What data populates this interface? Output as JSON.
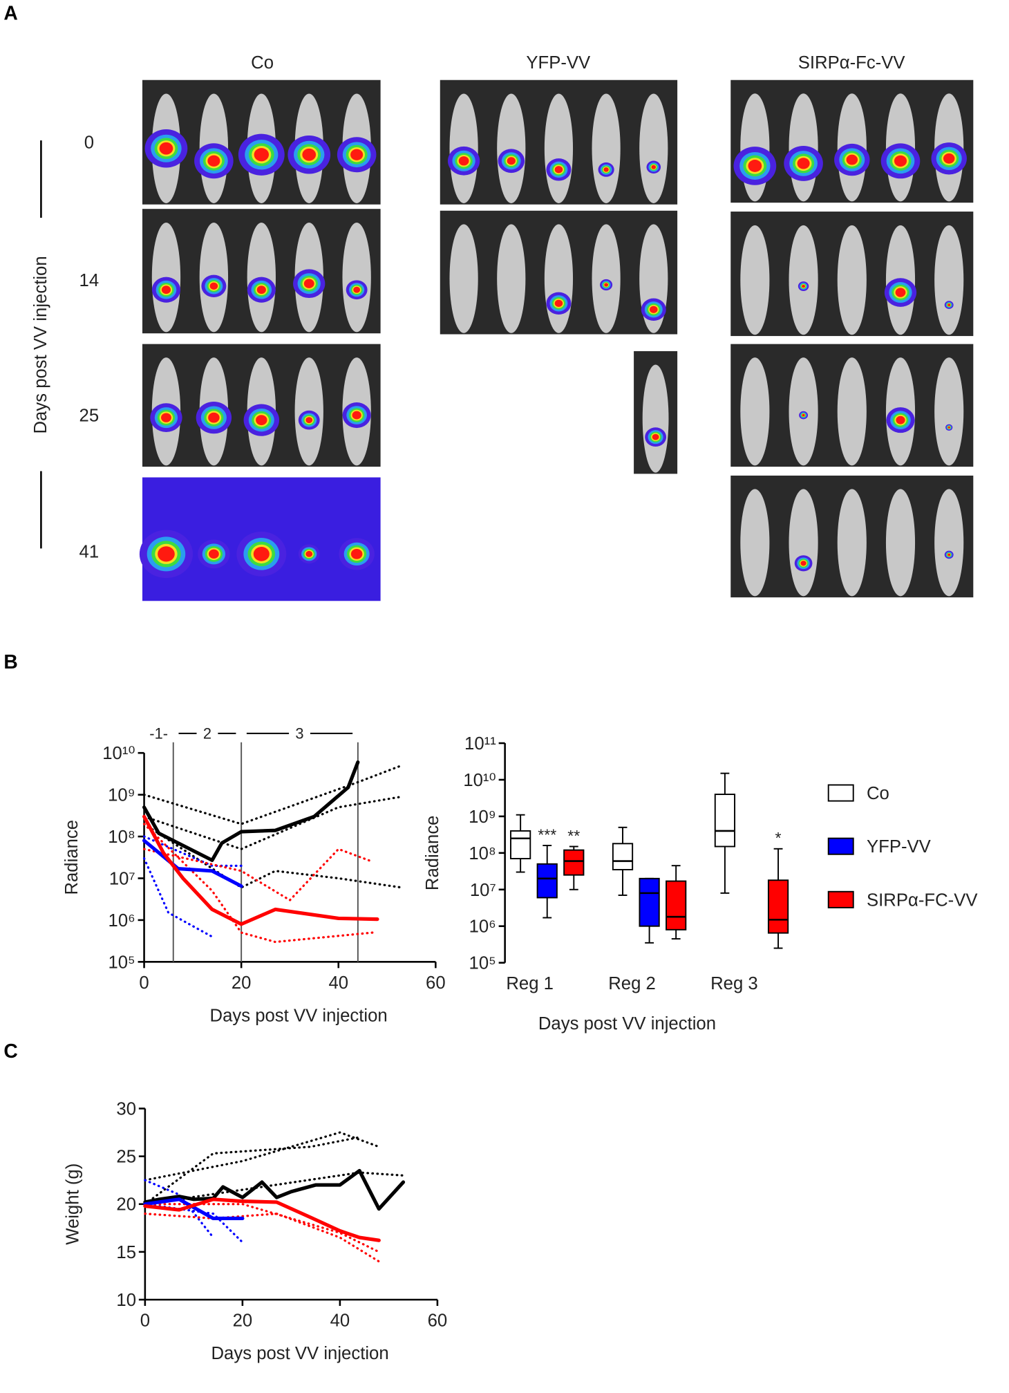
{
  "panel_a": {
    "label": "A",
    "columns": [
      "Co",
      "YFP-VV",
      "SIRPα-Fc-VV"
    ],
    "days": [
      "0",
      "14",
      "25",
      "41"
    ],
    "y_label": "Days post VV injection"
  },
  "panel_b_label": "B",
  "panel_c_label": "C",
  "chart_data": [
    {
      "type": "line",
      "y_label": "Radiance",
      "x_label": "Days post VV injection",
      "log_y": true,
      "xlim": [
        0,
        60
      ],
      "xticks": [
        0,
        20,
        40,
        60
      ],
      "ylim": [
        100000,
        10000000000
      ],
      "yticks": [
        {
          "value": 100000,
          "label": "10⁵"
        },
        {
          "value": 1000000,
          "label": "10⁶"
        },
        {
          "value": 10000000,
          "label": "10⁷"
        },
        {
          "value": 100000000,
          "label": "10⁸"
        },
        {
          "value": 1000000000,
          "label": "10⁹"
        },
        {
          "value": 10000000000,
          "label": "10¹⁰"
        }
      ],
      "vlines": [
        6,
        20,
        44
      ],
      "regions": [
        {
          "label": "-1-",
          "from": 0,
          "to": 6
        },
        {
          "label": "2",
          "from": 6,
          "to": 20
        },
        {
          "label": "3",
          "from": 20,
          "to": 44
        }
      ],
      "series": [
        {
          "color": "#000000",
          "style": "dotted",
          "x": [
            0,
            20,
            44,
            53
          ],
          "values": [
            1000000000,
            200000000,
            2000000000,
            5000000000
          ]
        },
        {
          "color": "#000000",
          "style": "dotted",
          "x": [
            0,
            20,
            40,
            53
          ],
          "values": [
            300000000,
            50000000,
            500000000,
            900000000
          ]
        },
        {
          "color": "#000000",
          "style": "dotted",
          "x": [
            0,
            20,
            27,
            40,
            53
          ],
          "values": [
            200000000,
            6000000,
            15000000,
            10000000,
            6000000
          ]
        },
        {
          "color": "#0000ff",
          "style": "dotted",
          "x": [
            0,
            5,
            14
          ],
          "values": [
            30000000,
            1500000,
            400000
          ]
        },
        {
          "color": "#0000ff",
          "style": "dotted",
          "x": [
            0,
            14,
            20
          ],
          "values": [
            100000000,
            20000000,
            20000000
          ]
        },
        {
          "color": "#ff0000",
          "style": "dotted",
          "x": [
            0,
            14,
            20,
            27,
            47
          ],
          "values": [
            200000000,
            5000000,
            500000,
            300000,
            500000
          ]
        },
        {
          "color": "#ff0000",
          "style": "dotted",
          "x": [
            0,
            20,
            30,
            40,
            47
          ],
          "values": [
            50000000,
            15000000,
            3000000,
            50000000,
            25000000
          ]
        },
        {
          "color": "#000000",
          "style": "solid",
          "x": [
            0,
            3,
            14,
            16,
            20,
            27,
            35,
            42,
            44
          ],
          "values": [
            500000000,
            120000000,
            27000000,
            70000000,
            130000000,
            140000000,
            300000000,
            1500000000,
            6000000000
          ]
        },
        {
          "color": "#0000ff",
          "style": "solid",
          "x": [
            0,
            7,
            14,
            20
          ],
          "values": [
            80000000,
            17000000,
            15000000,
            6500000
          ]
        },
        {
          "color": "#ff0000",
          "style": "solid",
          "x": [
            0,
            4,
            8,
            14,
            20,
            27,
            40,
            48
          ],
          "values": [
            300000000,
            40000000,
            10000000,
            1800000,
            800000,
            1800000,
            1100000,
            1050000
          ]
        }
      ]
    },
    {
      "type": "box",
      "y_label": "Radiance",
      "x_label": "Days post VV injection",
      "log_y": true,
      "categories": [
        "Reg 1",
        "Reg 2",
        "Reg 3"
      ],
      "ylim": [
        100000,
        100000000000
      ],
      "yticks": [
        {
          "value": 100000,
          "label": "10⁵"
        },
        {
          "value": 1000000,
          "label": "10⁶"
        },
        {
          "value": 10000000,
          "label": "10⁷"
        },
        {
          "value": 100000000,
          "label": "10⁸"
        },
        {
          "value": 1000000000,
          "label": "10⁹"
        },
        {
          "value": 10000000000,
          "label": "10¹⁰"
        },
        {
          "value": 100000000000,
          "label": "10¹¹"
        }
      ],
      "series": [
        {
          "name": "Co",
          "color": "#ffffff",
          "min": [
            30000000,
            7000000,
            8000000
          ],
          "q1": [
            70000000,
            35000000,
            150000000
          ],
          "median": [
            250000000,
            60000000,
            400000000
          ],
          "q3": [
            400000000,
            180000000,
            4000000000
          ],
          "max": [
            1100000000,
            500000000,
            15000000000
          ]
        },
        {
          "name": "YFP-VV",
          "color": "#0000ff",
          "min": [
            1700000,
            350000,
            null
          ],
          "q1": [
            6000000,
            1000000,
            null
          ],
          "median": [
            20000000,
            8000000,
            null
          ],
          "q3": [
            50000000,
            20000000,
            null
          ],
          "max": [
            160000000,
            20000000,
            null
          ]
        },
        {
          "name": "SIRPα-FC-VV",
          "color": "#ff0000",
          "min": [
            10000000,
            450000,
            250000
          ],
          "q1": [
            25000000,
            800000,
            650000
          ],
          "median": [
            60000000,
            1800000,
            1500000
          ],
          "q3": [
            120000000,
            17000000,
            18000000
          ],
          "max": [
            150000000,
            45000000,
            130000000
          ]
        }
      ],
      "annotations": [
        {
          "text": "***",
          "category": 0,
          "series": 1
        },
        {
          "text": "**",
          "category": 0,
          "series": 2
        },
        {
          "text": "*",
          "category": 2,
          "series": 2
        }
      ]
    },
    {
      "type": "line",
      "y_label": "Weight  (g)",
      "x_label": "Days post VV injection",
      "log_y": false,
      "xlim": [
        0,
        60
      ],
      "xticks": [
        0,
        20,
        40,
        60
      ],
      "ylim": [
        10,
        30
      ],
      "yticks": [
        10,
        15,
        20,
        25,
        30
      ],
      "series": [
        {
          "color": "#000000",
          "style": "dotted",
          "x": [
            0,
            20,
            40,
            48
          ],
          "values": [
            22.5,
            24.5,
            27.5,
            26
          ]
        },
        {
          "color": "#000000",
          "style": "dotted",
          "x": [
            0,
            14,
            34,
            44
          ],
          "values": [
            20,
            25.3,
            26,
            27
          ]
        },
        {
          "color": "#000000",
          "style": "dotted",
          "x": [
            0,
            20,
            44,
            53
          ],
          "values": [
            20,
            21.5,
            23.3,
            23
          ]
        },
        {
          "color": "#0000ff",
          "style": "dotted",
          "x": [
            0,
            7,
            14
          ],
          "values": [
            22.5,
            21,
            16.5
          ]
        },
        {
          "color": "#0000ff",
          "style": "dotted",
          "x": [
            0,
            14,
            20
          ],
          "values": [
            20,
            19,
            16
          ]
        },
        {
          "color": "#ff0000",
          "style": "dotted",
          "x": [
            0,
            14,
            27,
            40,
            48
          ],
          "values": [
            19,
            18.5,
            19,
            16.5,
            14
          ]
        },
        {
          "color": "#ff0000",
          "style": "dotted",
          "x": [
            0,
            20,
            40,
            48
          ],
          "values": [
            20,
            20,
            17,
            15
          ]
        },
        {
          "color": "#000000",
          "style": "solid",
          "x": [
            0,
            3,
            7,
            10,
            14,
            16,
            20,
            24,
            27,
            30,
            35,
            40,
            44,
            48,
            53
          ],
          "values": [
            20.2,
            20.5,
            20.8,
            20.5,
            20.6,
            21.8,
            20.7,
            22.3,
            20.7,
            21.3,
            22,
            22,
            23.5,
            19.5,
            22.3
          ]
        },
        {
          "color": "#0000ff",
          "style": "solid",
          "x": [
            0,
            7,
            14,
            20
          ],
          "values": [
            20,
            20.5,
            18.5,
            18.5
          ]
        },
        {
          "color": "#ff0000",
          "style": "solid",
          "x": [
            0,
            7,
            14,
            20,
            27,
            34,
            40,
            44,
            48
          ],
          "values": [
            19.8,
            19.4,
            20.5,
            20.3,
            20.2,
            18.6,
            17.2,
            16.5,
            16.2
          ]
        }
      ]
    }
  ]
}
